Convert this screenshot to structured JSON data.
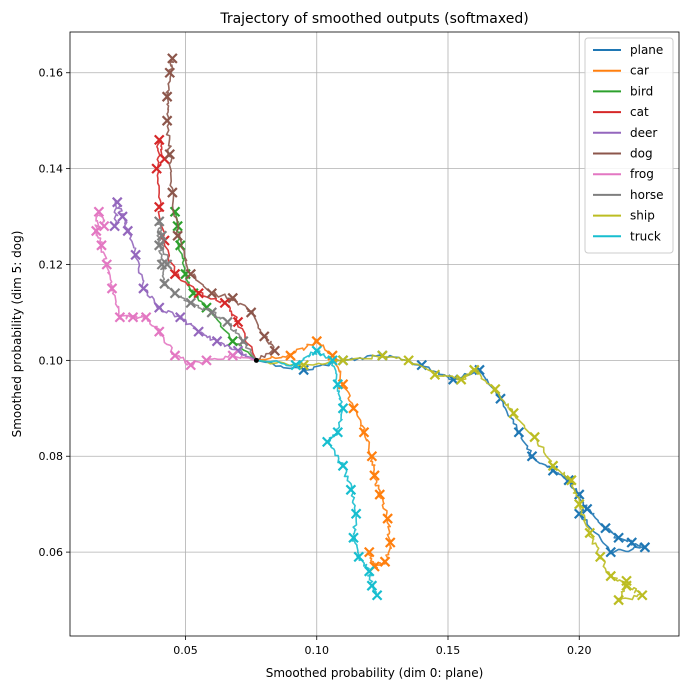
{
  "chart_data": {
    "type": "line",
    "title": "Trajectory of smoothed outputs (softmaxed)",
    "xlabel": "Smoothed probability (dim 0: plane)",
    "ylabel": "Smoothed probability (dim 5: dog)",
    "xlim": [
      0.006,
      0.238
    ],
    "ylim": [
      0.0425,
      0.1685
    ],
    "xticks": [
      "0.05",
      "0.10",
      "0.15",
      "0.20"
    ],
    "yticks": [
      "0.06",
      "0.08",
      "0.10",
      "0.12",
      "0.14",
      "0.16"
    ],
    "grid": true,
    "legend": "top-right",
    "start_point": [
      0.077,
      0.1
    ],
    "series": [
      {
        "name": "plane",
        "color": "#1f77b4",
        "points": [
          [
            0.077,
            0.1
          ],
          [
            0.095,
            0.098
          ],
          [
            0.11,
            0.1
          ],
          [
            0.125,
            0.101
          ],
          [
            0.14,
            0.099
          ],
          [
            0.152,
            0.096
          ],
          [
            0.162,
            0.098
          ],
          [
            0.17,
            0.092
          ],
          [
            0.177,
            0.085
          ],
          [
            0.182,
            0.08
          ],
          [
            0.19,
            0.077
          ],
          [
            0.196,
            0.075
          ],
          [
            0.2,
            0.072
          ],
          [
            0.203,
            0.069
          ],
          [
            0.21,
            0.065
          ],
          [
            0.215,
            0.063
          ],
          [
            0.22,
            0.062
          ],
          [
            0.225,
            0.061
          ],
          [
            0.212,
            0.06
          ],
          [
            0.2,
            0.068
          ]
        ]
      },
      {
        "name": "car",
        "color": "#ff7f0e",
        "points": [
          [
            0.077,
            0.1
          ],
          [
            0.09,
            0.101
          ],
          [
            0.1,
            0.104
          ],
          [
            0.106,
            0.101
          ],
          [
            0.11,
            0.095
          ],
          [
            0.114,
            0.09
          ],
          [
            0.118,
            0.085
          ],
          [
            0.121,
            0.08
          ],
          [
            0.122,
            0.076
          ],
          [
            0.124,
            0.072
          ],
          [
            0.127,
            0.067
          ],
          [
            0.128,
            0.062
          ],
          [
            0.126,
            0.058
          ],
          [
            0.122,
            0.057
          ],
          [
            0.12,
            0.06
          ]
        ]
      },
      {
        "name": "bird",
        "color": "#2ca02c",
        "points": [
          [
            0.077,
            0.1
          ],
          [
            0.068,
            0.104
          ],
          [
            0.058,
            0.111
          ],
          [
            0.053,
            0.114
          ],
          [
            0.05,
            0.118
          ],
          [
            0.048,
            0.124
          ],
          [
            0.047,
            0.128
          ],
          [
            0.046,
            0.131
          ]
        ]
      },
      {
        "name": "cat",
        "color": "#d62728",
        "points": [
          [
            0.077,
            0.1
          ],
          [
            0.07,
            0.108
          ],
          [
            0.065,
            0.112
          ],
          [
            0.055,
            0.114
          ],
          [
            0.046,
            0.118
          ],
          [
            0.042,
            0.125
          ],
          [
            0.04,
            0.132
          ],
          [
            0.039,
            0.14
          ],
          [
            0.04,
            0.146
          ],
          [
            0.042,
            0.142
          ]
        ]
      },
      {
        "name": "deer",
        "color": "#9467bd",
        "points": [
          [
            0.077,
            0.1
          ],
          [
            0.07,
            0.102
          ],
          [
            0.062,
            0.104
          ],
          [
            0.055,
            0.106
          ],
          [
            0.048,
            0.109
          ],
          [
            0.04,
            0.111
          ],
          [
            0.034,
            0.115
          ],
          [
            0.031,
            0.122
          ],
          [
            0.028,
            0.127
          ],
          [
            0.026,
            0.13
          ],
          [
            0.024,
            0.133
          ],
          [
            0.023,
            0.128
          ]
        ]
      },
      {
        "name": "dog",
        "color": "#8c564b",
        "points": [
          [
            0.077,
            0.1
          ],
          [
            0.084,
            0.102
          ],
          [
            0.08,
            0.105
          ],
          [
            0.075,
            0.11
          ],
          [
            0.068,
            0.113
          ],
          [
            0.06,
            0.114
          ],
          [
            0.052,
            0.118
          ],
          [
            0.047,
            0.126
          ],
          [
            0.045,
            0.135
          ],
          [
            0.044,
            0.143
          ],
          [
            0.043,
            0.15
          ],
          [
            0.043,
            0.155
          ],
          [
            0.044,
            0.16
          ],
          [
            0.045,
            0.163
          ]
        ]
      },
      {
        "name": "frog",
        "color": "#e377c2",
        "points": [
          [
            0.077,
            0.1
          ],
          [
            0.068,
            0.101
          ],
          [
            0.058,
            0.1
          ],
          [
            0.052,
            0.099
          ],
          [
            0.046,
            0.101
          ],
          [
            0.04,
            0.106
          ],
          [
            0.035,
            0.109
          ],
          [
            0.03,
            0.109
          ],
          [
            0.025,
            0.109
          ],
          [
            0.022,
            0.115
          ],
          [
            0.02,
            0.12
          ],
          [
            0.018,
            0.124
          ],
          [
            0.016,
            0.127
          ],
          [
            0.017,
            0.131
          ],
          [
            0.019,
            0.128
          ]
        ]
      },
      {
        "name": "horse",
        "color": "#7f7f7f",
        "points": [
          [
            0.077,
            0.1
          ],
          [
            0.072,
            0.104
          ],
          [
            0.066,
            0.108
          ],
          [
            0.06,
            0.11
          ],
          [
            0.052,
            0.112
          ],
          [
            0.046,
            0.114
          ],
          [
            0.042,
            0.116
          ],
          [
            0.041,
            0.12
          ],
          [
            0.04,
            0.124
          ],
          [
            0.04,
            0.129
          ],
          [
            0.041,
            0.126
          ],
          [
            0.043,
            0.12
          ]
        ]
      },
      {
        "name": "ship",
        "color": "#bcbd22",
        "points": [
          [
            0.077,
            0.1
          ],
          [
            0.095,
            0.099
          ],
          [
            0.11,
            0.1
          ],
          [
            0.125,
            0.101
          ],
          [
            0.135,
            0.1
          ],
          [
            0.145,
            0.097
          ],
          [
            0.155,
            0.096
          ],
          [
            0.16,
            0.098
          ],
          [
            0.168,
            0.094
          ],
          [
            0.175,
            0.089
          ],
          [
            0.183,
            0.084
          ],
          [
            0.19,
            0.078
          ],
          [
            0.197,
            0.075
          ],
          [
            0.2,
            0.07
          ],
          [
            0.204,
            0.064
          ],
          [
            0.208,
            0.059
          ],
          [
            0.212,
            0.055
          ],
          [
            0.218,
            0.053
          ],
          [
            0.224,
            0.051
          ],
          [
            0.215,
            0.05
          ],
          [
            0.218,
            0.054
          ]
        ]
      },
      {
        "name": "truck",
        "color": "#17becf",
        "points": [
          [
            0.077,
            0.1
          ],
          [
            0.092,
            0.099
          ],
          [
            0.1,
            0.102
          ],
          [
            0.106,
            0.1
          ],
          [
            0.108,
            0.095
          ],
          [
            0.11,
            0.09
          ],
          [
            0.108,
            0.085
          ],
          [
            0.104,
            0.083
          ],
          [
            0.11,
            0.078
          ],
          [
            0.113,
            0.073
          ],
          [
            0.115,
            0.068
          ],
          [
            0.114,
            0.063
          ],
          [
            0.116,
            0.059
          ],
          [
            0.12,
            0.056
          ],
          [
            0.121,
            0.053
          ],
          [
            0.123,
            0.051
          ]
        ]
      }
    ]
  }
}
